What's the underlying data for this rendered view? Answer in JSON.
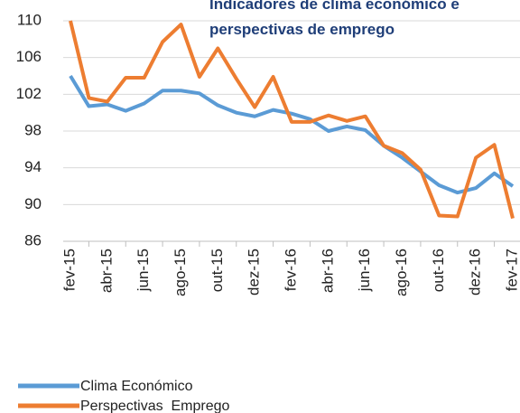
{
  "chart_data": {
    "type": "line",
    "title": "Indicadores de clima económico e perspectivas de emprego",
    "categories": [
      "fev-15",
      null,
      "abr-15",
      null,
      "jun-15",
      null,
      "ago-15",
      null,
      "out-15",
      null,
      "dez-15",
      null,
      "fev-16",
      null,
      "abr-16",
      null,
      "jun-16",
      null,
      "ago-16",
      null,
      "out-16",
      null,
      "dez-16",
      null,
      "fev-17"
    ],
    "series": [
      {
        "name": "Clima Económico",
        "color": "#5b9bd5",
        "values": [
          104,
          100.7,
          100.9,
          100.2,
          101,
          102.4,
          102.4,
          102.1,
          100.8,
          100,
          99.6,
          100.3,
          99.9,
          99.3,
          98,
          98.5,
          98.1,
          96.4,
          95.1,
          93.6,
          92.1,
          91.3,
          91.8,
          93.4,
          92
        ]
      },
      {
        "name": "Perspectivas  Emprego",
        "color": "#ed7d31",
        "values": [
          110,
          101.6,
          101.2,
          103.8,
          103.8,
          107.7,
          109.6,
          103.9,
          107,
          103.7,
          100.6,
          103.9,
          99,
          99,
          99.7,
          99.1,
          99.6,
          96.4,
          95.6,
          93.8,
          88.8,
          88.7,
          95.1,
          96.5,
          88.5
        ]
      }
    ],
    "ylim": [
      86,
      110
    ],
    "yticks": [
      86,
      90,
      94,
      98,
      102,
      106,
      110
    ],
    "grid": true,
    "legend": "bottom-left"
  }
}
